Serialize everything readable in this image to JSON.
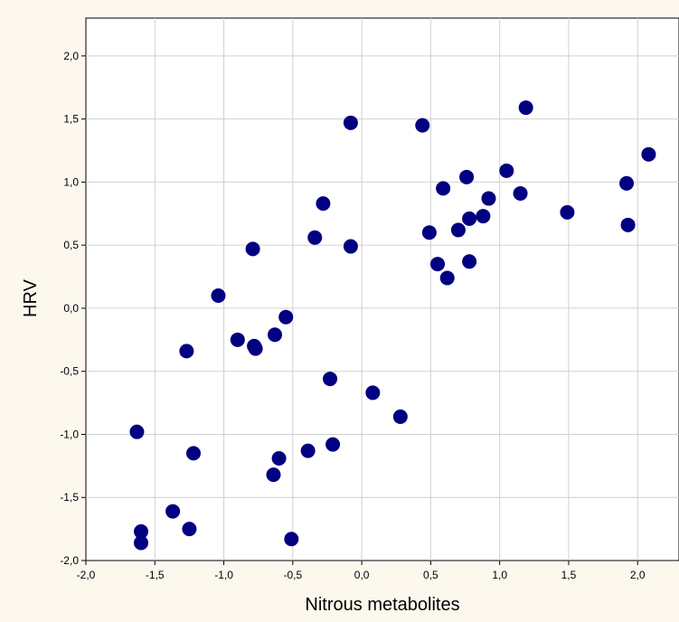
{
  "chart_data": {
    "type": "scatter",
    "xlabel": "Nitrous metabolites",
    "ylabel": "HRV",
    "xlim": [
      -2.0,
      2.3
    ],
    "ylim": [
      -2.0,
      2.3
    ],
    "xticks": [
      -2.0,
      -1.5,
      -1.0,
      -0.5,
      0.0,
      0.5,
      1.0,
      1.5,
      2.0
    ],
    "yticks": [
      -2.0,
      -1.5,
      -1.0,
      -0.5,
      0.0,
      0.5,
      1.0,
      1.5,
      2.0
    ],
    "xtick_labels": [
      "-2,0",
      "-1,5",
      "-1,0",
      "-0,5",
      "0,0",
      "0,5",
      "1,0",
      "1,5",
      "2,0"
    ],
    "ytick_labels": [
      "-2,0",
      "-1,5",
      "-1,0",
      "-0,5",
      "0,0",
      "0,5",
      "1,0",
      "1,5",
      "2,0"
    ],
    "grid": true,
    "marker_color": "#000080",
    "points": [
      {
        "x": -1.63,
        "y": -0.98
      },
      {
        "x": -1.6,
        "y": -1.77
      },
      {
        "x": -1.6,
        "y": -1.86
      },
      {
        "x": -1.37,
        "y": -1.61
      },
      {
        "x": -1.27,
        "y": -0.34
      },
      {
        "x": -1.25,
        "y": -1.75
      },
      {
        "x": -1.22,
        "y": -1.15
      },
      {
        "x": -1.04,
        "y": 0.1
      },
      {
        "x": -0.9,
        "y": -0.25
      },
      {
        "x": -0.79,
        "y": 0.47
      },
      {
        "x": -0.78,
        "y": -0.3
      },
      {
        "x": -0.77,
        "y": -0.32
      },
      {
        "x": -0.63,
        "y": -0.21
      },
      {
        "x": -0.64,
        "y": -1.32
      },
      {
        "x": -0.6,
        "y": -1.19
      },
      {
        "x": -0.55,
        "y": -0.07
      },
      {
        "x": -0.51,
        "y": -1.83
      },
      {
        "x": -0.39,
        "y": -1.13
      },
      {
        "x": -0.34,
        "y": 0.56
      },
      {
        "x": -0.28,
        "y": 0.83
      },
      {
        "x": -0.23,
        "y": -0.56
      },
      {
        "x": -0.21,
        "y": -1.08
      },
      {
        "x": -0.08,
        "y": 1.47
      },
      {
        "x": -0.08,
        "y": 0.49
      },
      {
        "x": 0.08,
        "y": -0.67
      },
      {
        "x": 0.28,
        "y": -0.86
      },
      {
        "x": 0.44,
        "y": 1.45
      },
      {
        "x": 0.49,
        "y": 0.6
      },
      {
        "x": 0.55,
        "y": 0.35
      },
      {
        "x": 0.59,
        "y": 0.95
      },
      {
        "x": 0.62,
        "y": 0.24
      },
      {
        "x": 0.7,
        "y": 0.62
      },
      {
        "x": 0.76,
        "y": 1.04
      },
      {
        "x": 0.78,
        "y": 0.37
      },
      {
        "x": 0.78,
        "y": 0.71
      },
      {
        "x": 0.88,
        "y": 0.73
      },
      {
        "x": 0.92,
        "y": 0.87
      },
      {
        "x": 1.05,
        "y": 1.09
      },
      {
        "x": 1.15,
        "y": 0.91
      },
      {
        "x": 1.19,
        "y": 1.59
      },
      {
        "x": 1.49,
        "y": 0.76
      },
      {
        "x": 1.92,
        "y": 0.99
      },
      {
        "x": 1.93,
        "y": 0.66
      },
      {
        "x": 2.08,
        "y": 1.22
      }
    ]
  }
}
